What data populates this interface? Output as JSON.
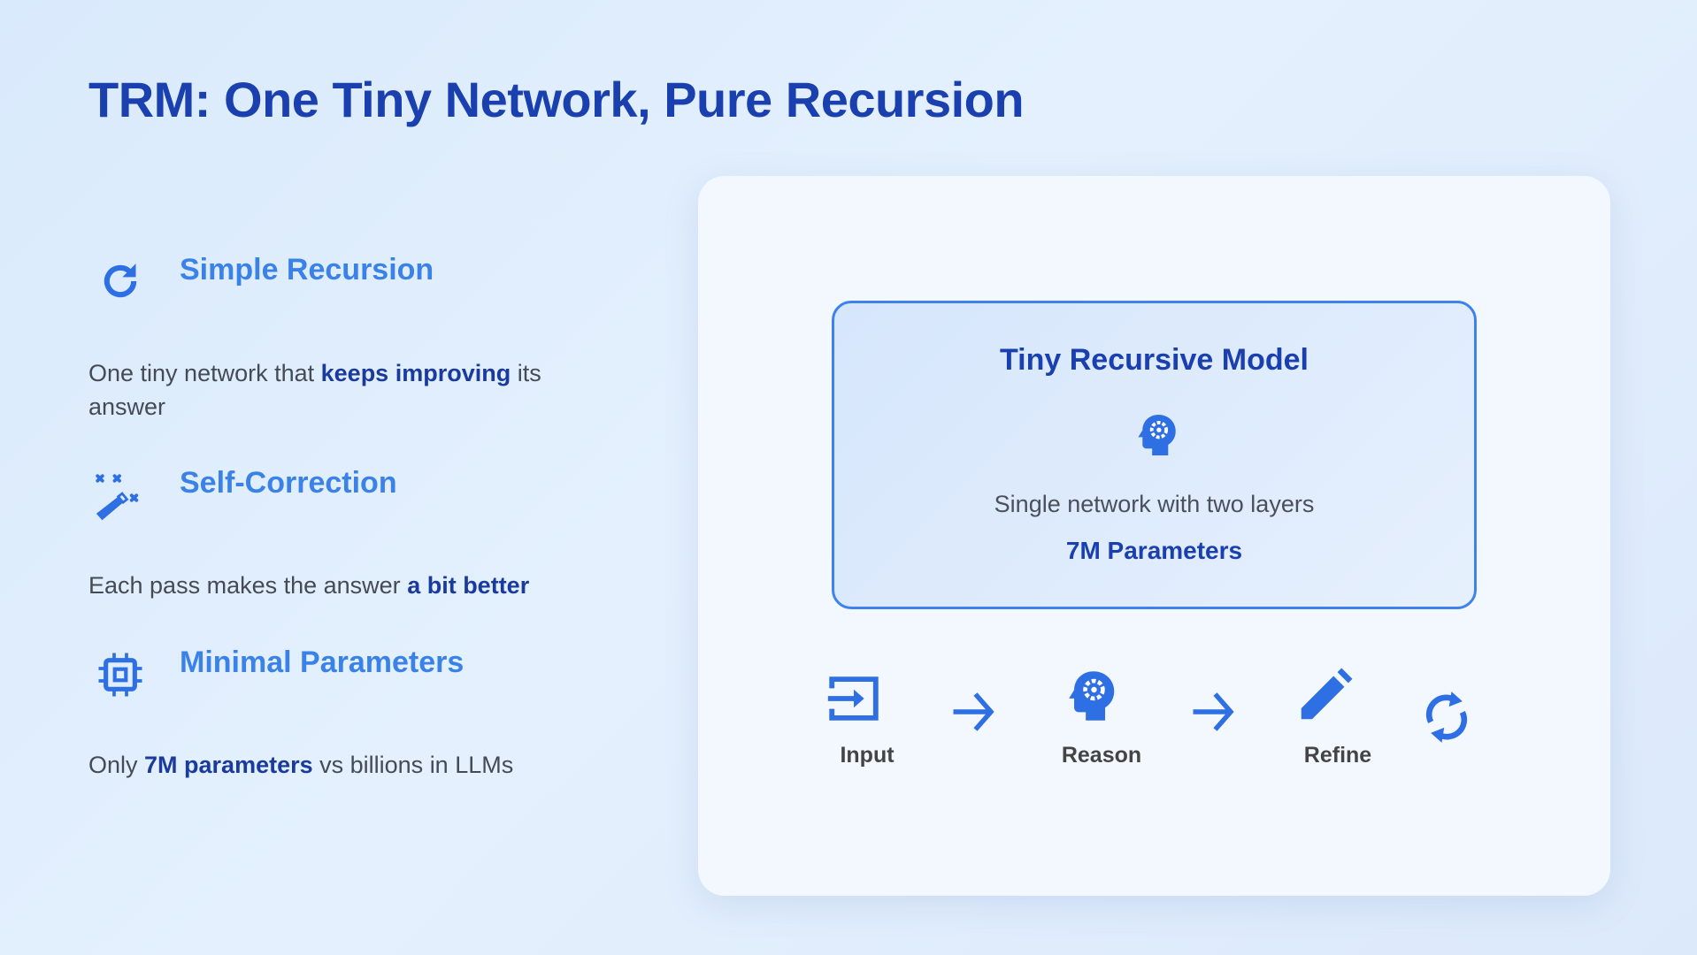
{
  "title": "TRM: One Tiny Network, Pure Recursion",
  "colors": {
    "accent": "#2f6fe4",
    "heading": "#3b82e8",
    "emphasis": "#1a3a9e",
    "title": "#1a3fae"
  },
  "features": [
    {
      "icon": "refresh-icon",
      "heading": "Simple Recursion",
      "pre": "One tiny network that ",
      "bold": "keeps improving",
      "post": " its answer"
    },
    {
      "icon": "magic-wand-icon",
      "heading": "Self-Correction",
      "pre": "Each pass makes the answer ",
      "bold": "a bit better",
      "post": ""
    },
    {
      "icon": "chip-icon",
      "heading": "Minimal Parameters",
      "pre": "Only ",
      "bold": "7M parameters",
      "post": " vs billions in LLMs"
    }
  ],
  "model": {
    "title": "Tiny Recursive Model",
    "icon": "head-gear-icon",
    "subtitle": "Single network with two layers",
    "params": "7M Parameters"
  },
  "flow": [
    {
      "icon": "input-icon",
      "label": "Input"
    },
    {
      "icon": "arrow-right-icon"
    },
    {
      "icon": "head-gear-icon",
      "label": "Reason"
    },
    {
      "icon": "arrow-right-icon"
    },
    {
      "icon": "pencil-icon",
      "label": "Refine"
    },
    {
      "icon": "loop-icon"
    }
  ]
}
